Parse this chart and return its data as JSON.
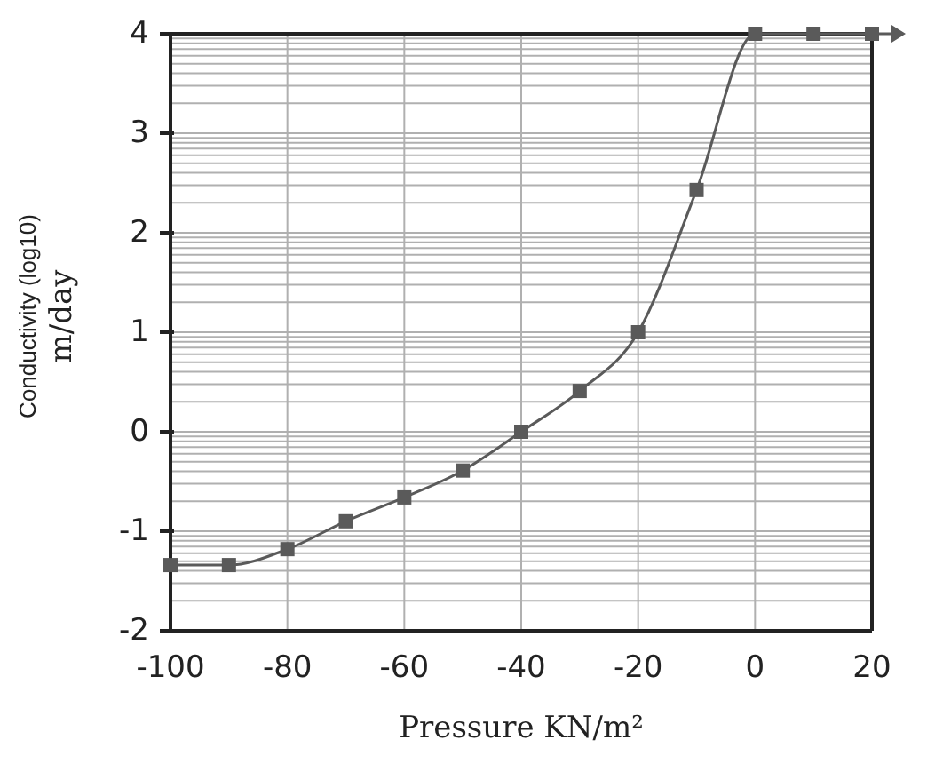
{
  "chart_data": {
    "type": "line",
    "xlabel": "Pressure KN/m²",
    "ylabel": "Conductivity (log10)\nm/day",
    "x": [
      -100,
      -90,
      -80,
      -70,
      -60,
      -50,
      -40,
      -30,
      -20,
      -10,
      0,
      10,
      20
    ],
    "series": [
      {
        "color": "#5a5a5a",
        "values": [
          -1.34,
          -1.34,
          -1.18,
          -0.9,
          -0.66,
          -0.39,
          0,
          0.41,
          1.0,
          2.43,
          4,
          4,
          4
        ]
      }
    ],
    "xlim": [
      -100,
      20
    ],
    "xticks": [
      -100,
      -80,
      -60,
      -40,
      -20,
      0,
      20
    ],
    "ylim": [
      -2,
      4
    ],
    "yticks": [
      -2,
      {
        "value": -1.699,
        "label": null
      },
      {
        "value": -1.523,
        "label": null
      },
      {
        "value": -1.398,
        "label": null
      },
      {
        "value": -1.301,
        "label": null
      },
      {
        "value": -1.222,
        "label": null
      },
      {
        "value": -1.155,
        "label": null
      },
      {
        "value": -1.097,
        "label": null
      },
      {
        "value": -1.046,
        "label": null
      },
      -1,
      {
        "value": -0.699,
        "label": null
      },
      {
        "value": -0.523,
        "label": null
      },
      {
        "value": -0.398,
        "label": null
      },
      {
        "value": -0.301,
        "label": null
      },
      {
        "value": -0.222,
        "label": null
      },
      {
        "value": -0.155,
        "label": null
      },
      {
        "value": -0.097,
        "label": null
      },
      {
        "value": -0.046,
        "label": null
      },
      0,
      {
        "value": 0.301,
        "label": null
      },
      {
        "value": 0.477,
        "label": null
      },
      {
        "value": 0.602,
        "label": null
      },
      {
        "value": 0.699,
        "label": null
      },
      {
        "value": 0.778,
        "label": null
      },
      {
        "value": 0.845,
        "label": null
      },
      {
        "value": 0.903,
        "label": null
      },
      {
        "value": 0.954,
        "label": null
      },
      1,
      {
        "value": 1.301,
        "label": null
      },
      {
        "value": 1.477,
        "label": null
      },
      {
        "value": 1.602,
        "label": null
      },
      {
        "value": 1.699,
        "label": null
      },
      {
        "value": 1.778,
        "label": null
      },
      {
        "value": 1.845,
        "label": null
      },
      {
        "value": 1.903,
        "label": null
      },
      {
        "value": 1.954,
        "label": null
      },
      2,
      {
        "value": 2.301,
        "label": null
      },
      {
        "value": 2.477,
        "label": null
      },
      {
        "value": 2.602,
        "label": null
      },
      {
        "value": 2.699,
        "label": null
      },
      {
        "value": 2.778,
        "label": null
      },
      {
        "value": 2.845,
        "label": null
      },
      {
        "value": 2.903,
        "label": null
      },
      {
        "value": 2.954,
        "label": null
      },
      3,
      {
        "value": 3.301,
        "label": null
      },
      {
        "value": 3.477,
        "label": null
      },
      {
        "value": 3.602,
        "label": null
      },
      {
        "value": 3.699,
        "label": null
      },
      {
        "value": 3.778,
        "label": null
      },
      {
        "value": 3.845,
        "label": null
      },
      {
        "value": 3.903,
        "label": null
      },
      {
        "value": 3.954,
        "label": null
      },
      4
    ],
    "grid": true,
    "marker": "square",
    "line_style": "solid"
  }
}
